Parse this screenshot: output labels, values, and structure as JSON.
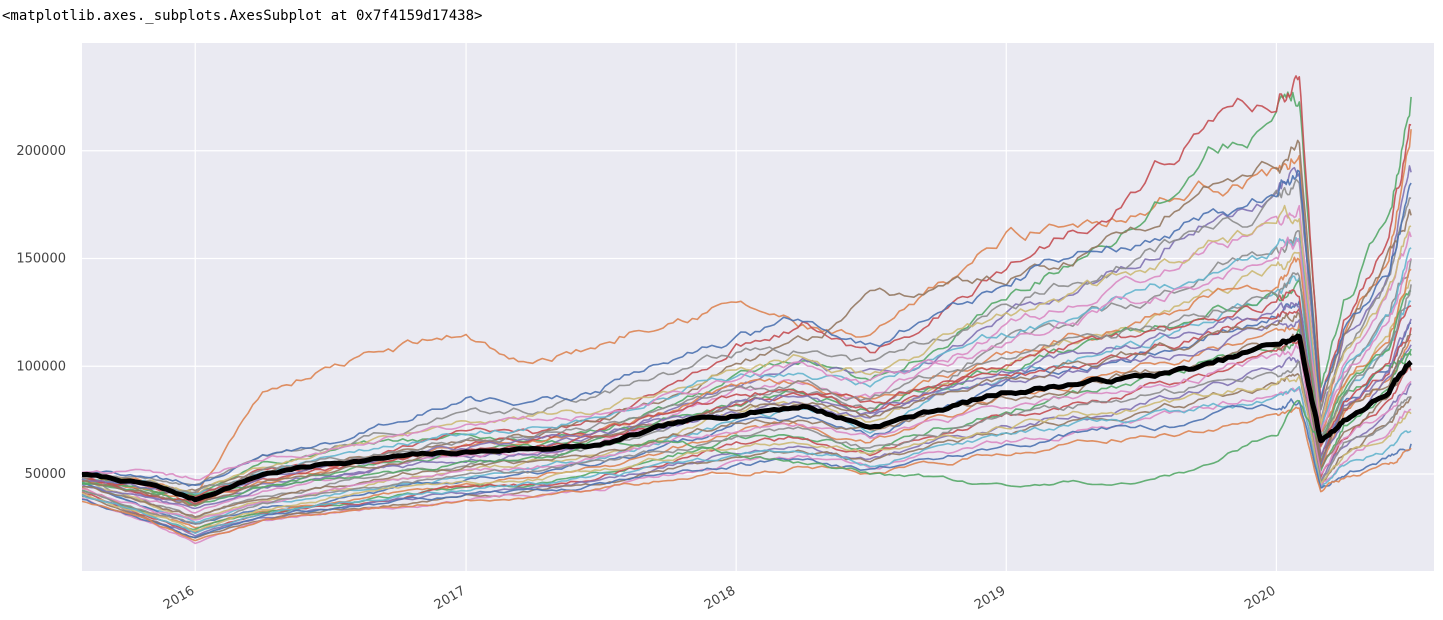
{
  "output_repr": "<matplotlib.axes._subplots.AxesSubplot at 0x7f4159d17438>",
  "chart_data": {
    "type": "line",
    "title": "",
    "xlabel": "",
    "ylabel": "",
    "x_range": [
      "2015-08-01",
      "2020-08-01"
    ],
    "ylim": [
      5000,
      250000
    ],
    "grid": true,
    "legend": "none",
    "style": "seaborn",
    "background_color": "#eaeaf2",
    "x_ticks": [
      "2016",
      "2017",
      "2018",
      "2019",
      "2020"
    ],
    "y_ticks": [
      50000,
      100000,
      150000,
      200000
    ],
    "colors": [
      "#4c72b0",
      "#dd8452",
      "#55a868",
      "#c44e52",
      "#8172b3",
      "#937860",
      "#da8bc3",
      "#8c8c8c",
      "#ccb974",
      "#64b5cd"
    ],
    "x": [
      "2015-08",
      "2015-11",
      "2016-01",
      "2016-04",
      "2016-07",
      "2016-10",
      "2017-01",
      "2017-04",
      "2017-07",
      "2017-10",
      "2018-01",
      "2018-04",
      "2018-07",
      "2018-10",
      "2019-01",
      "2019-04",
      "2019-07",
      "2019-10",
      "2020-01",
      "2020-02",
      "2020-03",
      "2020-04",
      "2020-06",
      "2020-07"
    ],
    "series": [
      {
        "values": [
          50000,
          45000,
          38000,
          50000,
          55000,
          58000,
          60000,
          62000,
          63000,
          72000,
          78000,
          82000,
          72000,
          80000,
          88000,
          92000,
          95000,
          100000,
          110000,
          113000,
          65000,
          75000,
          88000,
          102000
        ],
        "mean": true
      },
      {
        "values": [
          50000,
          46000,
          38000,
          88000,
          100000,
          108000,
          115000,
          100000,
          110000,
          125000,
          130000,
          118000,
          110000,
          135000,
          160000,
          168000,
          175000,
          185000,
          190000,
          200000,
          70000,
          110000,
          150000,
          210000
        ]
      },
      {
        "values": [
          50000,
          42000,
          40000,
          55000,
          60000,
          65000,
          68000,
          66000,
          70000,
          80000,
          95000,
          100000,
          90000,
          110000,
          130000,
          150000,
          170000,
          200000,
          215000,
          225000,
          90000,
          130000,
          170000,
          225000
        ]
      },
      {
        "values": [
          50000,
          44000,
          39000,
          52000,
          56000,
          62000,
          70000,
          68000,
          75000,
          88000,
          110000,
          120000,
          105000,
          125000,
          145000,
          165000,
          185000,
          215000,
          225000,
          235000,
          85000,
          120000,
          160000,
          212000
        ]
      },
      {
        "values": [
          50000,
          40000,
          35000,
          45000,
          50000,
          55000,
          60000,
          62000,
          68000,
          78000,
          92000,
          100000,
          95000,
          105000,
          120000,
          135000,
          150000,
          170000,
          180000,
          190000,
          75000,
          110000,
          145000,
          190000
        ]
      },
      {
        "values": [
          50000,
          40000,
          42000,
          50000,
          55000,
          60000,
          65000,
          68000,
          75000,
          85000,
          100000,
          110000,
          130000,
          136000,
          140000,
          150000,
          165000,
          185000,
          195000,
          200000,
          80000,
          115000,
          150000,
          170000
        ]
      },
      {
        "values": [
          50000,
          38000,
          32000,
          42000,
          48000,
          54000,
          58000,
          60000,
          65000,
          75000,
          90000,
          95000,
          85000,
          100000,
          118000,
          130000,
          140000,
          155000,
          165000,
          175000,
          70000,
          100000,
          135000,
          160000
        ]
      },
      {
        "values": [
          48000,
          36000,
          30000,
          40000,
          45000,
          50000,
          55000,
          58000,
          62000,
          70000,
          85000,
          90000,
          80000,
          95000,
          110000,
          120000,
          130000,
          145000,
          155000,
          160000,
          65000,
          95000,
          125000,
          150000
        ]
      },
      {
        "values": [
          47000,
          35000,
          28000,
          38000,
          42000,
          48000,
          52000,
          55000,
          60000,
          68000,
          80000,
          85000,
          75000,
          90000,
          102000,
          112000,
          120000,
          135000,
          145000,
          150000,
          60000,
          90000,
          115000,
          140000
        ]
      },
      {
        "values": [
          46000,
          34000,
          27000,
          36000,
          40000,
          45000,
          50000,
          52000,
          57000,
          65000,
          75000,
          80000,
          70000,
          85000,
          96000,
          105000,
          112000,
          125000,
          135000,
          140000,
          58000,
          85000,
          108000,
          130000
        ]
      },
      {
        "values": [
          45000,
          33000,
          26000,
          34000,
          38000,
          43000,
          48000,
          50000,
          55000,
          62000,
          72000,
          76000,
          68000,
          80000,
          90000,
          98000,
          105000,
          116000,
          125000,
          130000,
          55000,
          80000,
          100000,
          120000
        ]
      },
      {
        "values": [
          44000,
          32000,
          25000,
          33000,
          37000,
          42000,
          46000,
          48000,
          53000,
          60000,
          70000,
          73000,
          65000,
          76000,
          85000,
          92000,
          98000,
          108000,
          118000,
          122000,
          53000,
          76000,
          95000,
          112000
        ]
      },
      {
        "values": [
          43000,
          31000,
          24000,
          32000,
          36000,
          40000,
          44000,
          46000,
          51000,
          58000,
          67000,
          70000,
          62000,
          72000,
          80000,
          87000,
          92000,
          102000,
          110000,
          115000,
          50000,
          72000,
          90000,
          105000
        ]
      },
      {
        "values": [
          42000,
          30000,
          23000,
          31000,
          35000,
          39000,
          43000,
          45000,
          49000,
          56000,
          64000,
          67000,
          60000,
          69000,
          76000,
          82000,
          87000,
          96000,
          104000,
          108000,
          48000,
          68000,
          85000,
          98000
        ]
      },
      {
        "values": [
          41000,
          29000,
          22000,
          30000,
          34000,
          38000,
          41000,
          43000,
          47000,
          54000,
          61000,
          64000,
          57000,
          66000,
          72000,
          78000,
          83000,
          90000,
          98000,
          102000,
          46000,
          64000,
          80000,
          92000
        ]
      },
      {
        "values": [
          40000,
          28000,
          20000,
          29000,
          33000,
          36000,
          40000,
          42000,
          45000,
          52000,
          58000,
          61000,
          55000,
          63000,
          69000,
          74000,
          78000,
          85000,
          92000,
          96000,
          45000,
          60000,
          75000,
          86000
        ]
      },
      {
        "values": [
          39000,
          27000,
          18000,
          28000,
          32000,
          35000,
          38000,
          40000,
          43000,
          50000,
          55000,
          58000,
          52000,
          60000,
          65000,
          70000,
          74000,
          80000,
          88000,
          92000,
          44000,
          56000,
          70000,
          80000
        ]
      },
      {
        "values": [
          50000,
          48000,
          44000,
          56000,
          62000,
          70000,
          78000,
          80000,
          85000,
          95000,
          105000,
          110000,
          100000,
          115000,
          128000,
          140000,
          150000,
          165000,
          175000,
          185000,
          80000,
          110000,
          140000,
          178000
        ]
      },
      {
        "values": [
          49000,
          47000,
          42000,
          54000,
          60000,
          68000,
          74000,
          76000,
          80000,
          90000,
          100000,
          105000,
          96000,
          110000,
          122000,
          132000,
          142000,
          155000,
          165000,
          172000,
          75000,
          105000,
          132000,
          165000
        ]
      },
      {
        "values": [
          48000,
          45000,
          40000,
          52000,
          58000,
          64000,
          70000,
          72000,
          76000,
          86000,
          96000,
          100000,
          92000,
          104000,
          115000,
          125000,
          133000,
          145000,
          155000,
          162000,
          72000,
          100000,
          125000,
          155000
        ]
      },
      {
        "values": [
          50000,
          49000,
          46000,
          58000,
          66000,
          76000,
          85000,
          82000,
          90000,
          105000,
          115000,
          120000,
          108000,
          125000,
          140000,
          155000,
          160000,
          172000,
          182000,
          190000,
          85000,
          115000,
          145000,
          185000
        ]
      },
      {
        "values": [
          47000,
          43000,
          36000,
          46000,
          52000,
          58000,
          63000,
          65000,
          70000,
          80000,
          88000,
          92000,
          84000,
          96000,
          106000,
          115000,
          122000,
          133000,
          142000,
          148000,
          68000,
          92000,
          115000,
          145000
        ]
      },
      {
        "values": [
          46000,
          42000,
          34000,
          44000,
          50000,
          56000,
          61000,
          62000,
          67000,
          76000,
          84000,
          88000,
          80000,
          92000,
          101000,
          109000,
          116000,
          126000,
          135000,
          140000,
          65000,
          88000,
          108000,
          135000
        ]
      },
      {
        "values": [
          50000,
          40000,
          37000,
          47000,
          52000,
          57000,
          61000,
          63000,
          67000,
          75000,
          82000,
          86000,
          78000,
          88000,
          96000,
          102000,
          108000,
          116000,
          124000,
          128000,
          60000,
          80000,
          98000,
          118000
        ]
      },
      {
        "values": [
          45000,
          38000,
          33000,
          43000,
          48000,
          53000,
          57000,
          60000,
          64000,
          72000,
          79000,
          82000,
          74000,
          84000,
          91000,
          97000,
          103000,
          110000,
          117000,
          122000,
          55000,
          75000,
          92000,
          110000
        ]
      },
      {
        "values": [
          44000,
          36000,
          30000,
          40000,
          45000,
          50000,
          54000,
          56000,
          60000,
          68000,
          74000,
          77000,
          70000,
          79000,
          86000,
          92000,
          97000,
          104000,
          110000,
          114000,
          52000,
          70000,
          86000,
          100000
        ]
      },
      {
        "values": [
          43000,
          34000,
          28000,
          38000,
          43000,
          47000,
          51000,
          53000,
          57000,
          64000,
          70000,
          73000,
          66000,
          74000,
          81000,
          87000,
          92000,
          98000,
          104000,
          108000,
          50000,
          66000,
          80000,
          93000
        ]
      },
      {
        "values": [
          42000,
          32000,
          26000,
          36000,
          41000,
          45000,
          49000,
          51000,
          55000,
          61000,
          66000,
          69000,
          62000,
          70000,
          77000,
          82000,
          86000,
          92000,
          98000,
          101000,
          47000,
          62000,
          74000,
          85000
        ]
      },
      {
        "values": [
          41000,
          31000,
          24000,
          34000,
          39000,
          43000,
          46000,
          48000,
          52000,
          58000,
          63000,
          65000,
          59000,
          66000,
          72000,
          77000,
          81000,
          86000,
          92000,
          95000,
          46000,
          58000,
          68000,
          78000
        ]
      },
      {
        "values": [
          40000,
          30000,
          22000,
          32000,
          36000,
          40000,
          43000,
          45000,
          49000,
          54000,
          58000,
          60000,
          55000,
          62000,
          68000,
          72000,
          76000,
          81000,
          86000,
          89000,
          44000,
          54000,
          62000,
          70000
        ]
      },
      {
        "values": [
          38000,
          28000,
          20000,
          30000,
          34000,
          37000,
          40000,
          42000,
          45000,
          50000,
          54000,
          56000,
          52000,
          58000,
          64000,
          68000,
          72000,
          76000,
          80000,
          83000,
          44000,
          50000,
          58000,
          64000
        ]
      },
      {
        "values": [
          37000,
          27000,
          19000,
          28000,
          32000,
          35000,
          38000,
          40000,
          43000,
          47000,
          51000,
          53000,
          50000,
          55000,
          60000,
          64000,
          68000,
          72000,
          76000,
          78000,
          43000,
          48000,
          55000,
          62000
        ]
      },
      {
        "values": [
          45000,
          42000,
          40000,
          44000,
          47000,
          50000,
          55000,
          58000,
          62000,
          66000,
          60000,
          55000,
          50000,
          47000,
          43000,
          46000,
          48000,
          54000,
          70000,
          85000,
          65000,
          85000,
          100000,
          108000
        ]
      },
      {
        "values": [
          48000,
          44000,
          40000,
          50000,
          55000,
          60000,
          64000,
          66000,
          70000,
          78000,
          86000,
          90000,
          82000,
          92000,
          100000,
          108000,
          114000,
          122000,
          130000,
          135000,
          62000,
          85000,
          102000,
          128000
        ]
      },
      {
        "values": [
          47000,
          43000,
          38000,
          48000,
          53000,
          58000,
          62000,
          64000,
          68000,
          76000,
          83000,
          87000,
          79000,
          89000,
          97000,
          104000,
          110000,
          118000,
          126000,
          130000,
          60000,
          82000,
          98000,
          122000
        ]
      },
      {
        "values": [
          46000,
          41000,
          36000,
          46000,
          51000,
          56000,
          60000,
          62000,
          66000,
          73000,
          80000,
          84000,
          76000,
          86000,
          93000,
          100000,
          106000,
          113000,
          120000,
          125000,
          58000,
          78000,
          94000,
          115000
        ]
      },
      {
        "values": [
          50000,
          50000,
          48000,
          56000,
          62000,
          68000,
          72000,
          74000,
          78000,
          86000,
          95000,
          100000,
          92000,
          102000,
          112000,
          122000,
          130000,
          140000,
          150000,
          156000,
          70000,
          95000,
          118000,
          150000
        ]
      },
      {
        "values": [
          49000,
          46000,
          41000,
          51000,
          57000,
          62000,
          66000,
          68000,
          72000,
          80000,
          88000,
          92000,
          84000,
          94000,
          103000,
          111000,
          118000,
          127000,
          136000,
          141000,
          64000,
          88000,
          108000,
          138000
        ]
      }
    ]
  }
}
